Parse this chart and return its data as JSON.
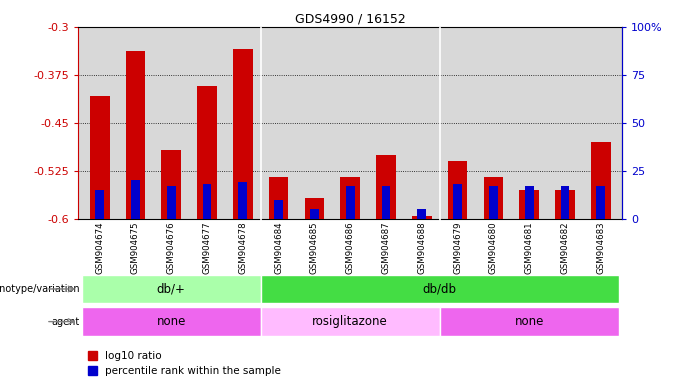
{
  "title": "GDS4990 / 16152",
  "samples": [
    "GSM904674",
    "GSM904675",
    "GSM904676",
    "GSM904677",
    "GSM904678",
    "GSM904684",
    "GSM904685",
    "GSM904686",
    "GSM904687",
    "GSM904688",
    "GSM904679",
    "GSM904680",
    "GSM904681",
    "GSM904682",
    "GSM904683"
  ],
  "log10_ratio": [
    -0.408,
    -0.338,
    -0.493,
    -0.393,
    -0.335,
    -0.535,
    -0.568,
    -0.535,
    -0.5,
    -0.595,
    -0.51,
    -0.535,
    -0.555,
    -0.555,
    -0.48
  ],
  "percentile": [
    15,
    20,
    17,
    18,
    19,
    10,
    5,
    17,
    17,
    5,
    18,
    17,
    17,
    17,
    17
  ],
  "ylim_left": [
    -0.6,
    -0.3
  ],
  "ylim_right": [
    0,
    100
  ],
  "yticks_left": [
    -0.6,
    -0.525,
    -0.45,
    -0.375,
    -0.3
  ],
  "yticks_right": [
    0,
    25,
    50,
    75,
    100
  ],
  "bar_color_red": "#cc0000",
  "bar_color_blue": "#0000cc",
  "bg_color": "#ffffff",
  "axis_bg": "#d8d8d8",
  "genotype_groups": [
    {
      "label": "db/+",
      "start": 0,
      "end": 5,
      "color": "#aaffaa"
    },
    {
      "label": "db/db",
      "start": 5,
      "end": 15,
      "color": "#44dd44"
    }
  ],
  "agent_groups": [
    {
      "label": "none",
      "start": 0,
      "end": 5,
      "color": "#ee66ee"
    },
    {
      "label": "rosiglitazone",
      "start": 5,
      "end": 10,
      "color": "#ffbbff"
    },
    {
      "label": "none",
      "start": 10,
      "end": 15,
      "color": "#ee66ee"
    }
  ],
  "left_axis_color": "#cc0000",
  "right_axis_color": "#0000cc",
  "grid_yticks": [
    -0.375,
    -0.45,
    -0.525
  ]
}
